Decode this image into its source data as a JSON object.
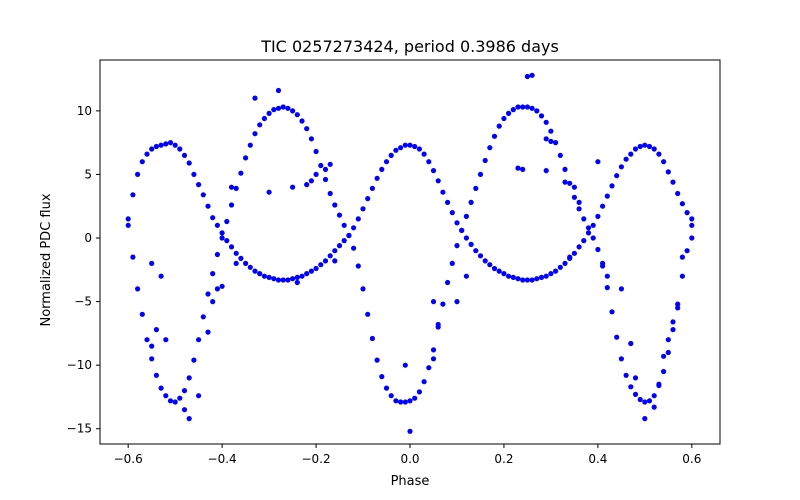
{
  "chart_data": {
    "type": "scatter",
    "title": "TIC 0257273424, period 0.3986 days",
    "xlabel": "Phase",
    "ylabel": "Normalized PDC flux",
    "xlim": [
      -0.66,
      0.66
    ],
    "ylim": [
      -16.2,
      14.0
    ],
    "xticks": [
      -0.6,
      -0.4,
      -0.2,
      0.0,
      0.2,
      0.4,
      0.6
    ],
    "xtick_labels": [
      "−0.6",
      "−0.4",
      "−0.2",
      "0.0",
      "0.2",
      "0.4",
      "0.6"
    ],
    "yticks": [
      -15,
      -10,
      -5,
      0,
      5,
      10
    ],
    "ytick_labels": [
      "−15",
      "−10",
      "−5",
      "0",
      "5",
      "10"
    ],
    "grid": false,
    "legend": "none",
    "marker_color": "#0000ff",
    "series": [
      {
        "points": [
          [
            -0.6,
            1.5
          ],
          [
            -0.59,
            3.4
          ],
          [
            -0.58,
            5.0
          ],
          [
            -0.57,
            6.0
          ],
          [
            -0.56,
            6.6
          ],
          [
            -0.55,
            7.0
          ],
          [
            -0.54,
            7.2
          ],
          [
            -0.53,
            7.3
          ],
          [
            -0.52,
            7.4
          ],
          [
            -0.51,
            7.5
          ],
          [
            -0.5,
            7.3
          ],
          [
            -0.49,
            7.0
          ],
          [
            -0.48,
            6.5
          ],
          [
            -0.47,
            5.9
          ],
          [
            -0.46,
            5.0
          ],
          [
            -0.45,
            4.2
          ],
          [
            -0.44,
            3.4
          ],
          [
            -0.43,
            2.5
          ],
          [
            -0.42,
            1.6
          ],
          [
            -0.41,
            1.0
          ],
          [
            -0.4,
            0.4
          ],
          [
            -0.39,
            -0.2
          ],
          [
            -0.38,
            -0.7
          ],
          [
            -0.37,
            -1.2
          ],
          [
            -0.36,
            -1.6
          ],
          [
            -0.35,
            -2.0
          ],
          [
            -0.34,
            -2.3
          ],
          [
            -0.33,
            -2.6
          ],
          [
            -0.32,
            -2.8
          ],
          [
            -0.31,
            -3.0
          ],
          [
            -0.3,
            -3.1
          ],
          [
            -0.29,
            -3.2
          ],
          [
            -0.28,
            -3.3
          ],
          [
            -0.27,
            -3.3
          ],
          [
            -0.26,
            -3.3
          ],
          [
            -0.25,
            -3.2
          ],
          [
            -0.24,
            -3.1
          ],
          [
            -0.23,
            -3.0
          ],
          [
            -0.22,
            -2.8
          ],
          [
            -0.21,
            -2.6
          ],
          [
            -0.2,
            -2.4
          ],
          [
            -0.19,
            -2.1
          ],
          [
            -0.18,
            -1.8
          ],
          [
            -0.17,
            -1.4
          ],
          [
            -0.16,
            -1.0
          ],
          [
            -0.15,
            -0.6
          ],
          [
            -0.14,
            -0.2
          ],
          [
            -0.13,
            0.2
          ],
          [
            -0.12,
            0.8
          ],
          [
            -0.11,
            1.5
          ],
          [
            -0.1,
            2.3
          ],
          [
            -0.09,
            3.1
          ],
          [
            -0.08,
            3.9
          ],
          [
            -0.07,
            4.7
          ],
          [
            -0.06,
            5.4
          ],
          [
            -0.05,
            6.0
          ],
          [
            -0.04,
            6.5
          ],
          [
            -0.03,
            6.9
          ],
          [
            -0.02,
            7.1
          ],
          [
            -0.01,
            7.3
          ],
          [
            0.0,
            7.3
          ],
          [
            0.01,
            7.2
          ],
          [
            0.02,
            7.0
          ],
          [
            0.03,
            6.6
          ],
          [
            0.04,
            6.0
          ],
          [
            0.05,
            5.3
          ],
          [
            0.06,
            4.5
          ],
          [
            0.07,
            3.6
          ],
          [
            0.08,
            2.8
          ],
          [
            0.09,
            2.0
          ],
          [
            0.1,
            1.2
          ],
          [
            0.11,
            0.6
          ],
          [
            0.12,
            0.0
          ],
          [
            0.13,
            -0.5
          ],
          [
            0.14,
            -1.0
          ],
          [
            0.15,
            -1.4
          ],
          [
            0.16,
            -1.8
          ],
          [
            0.17,
            -2.1
          ],
          [
            0.18,
            -2.4
          ],
          [
            0.19,
            -2.6
          ],
          [
            0.2,
            -2.8
          ],
          [
            0.21,
            -3.0
          ],
          [
            0.22,
            -3.1
          ],
          [
            0.23,
            -3.2
          ],
          [
            0.24,
            -3.3
          ],
          [
            0.25,
            -3.3
          ],
          [
            0.26,
            -3.3
          ],
          [
            0.27,
            -3.2
          ],
          [
            0.28,
            -3.1
          ],
          [
            0.29,
            -3.0
          ],
          [
            0.3,
            -2.8
          ],
          [
            0.31,
            -2.6
          ],
          [
            0.32,
            -2.3
          ],
          [
            0.33,
            -2.0
          ],
          [
            0.34,
            -1.6
          ],
          [
            0.35,
            -1.2
          ],
          [
            0.36,
            -0.7
          ],
          [
            0.37,
            -0.2
          ],
          [
            0.38,
            0.4
          ],
          [
            0.39,
            1.0
          ],
          [
            0.4,
            1.7
          ],
          [
            0.41,
            2.5
          ],
          [
            0.42,
            3.3
          ],
          [
            0.43,
            4.1
          ],
          [
            0.44,
            4.9
          ],
          [
            0.45,
            5.6
          ],
          [
            0.46,
            6.2
          ],
          [
            0.47,
            6.6
          ],
          [
            0.48,
            7.0
          ],
          [
            0.49,
            7.2
          ],
          [
            0.5,
            7.3
          ],
          [
            0.51,
            7.2
          ],
          [
            0.52,
            7.0
          ],
          [
            0.53,
            6.6
          ],
          [
            0.54,
            6.0
          ],
          [
            0.55,
            5.2
          ],
          [
            0.56,
            4.4
          ],
          [
            0.57,
            3.5
          ],
          [
            0.58,
            2.7
          ],
          [
            0.59,
            2.0
          ],
          [
            0.6,
            1.5
          ]
        ]
      },
      {
        "points": [
          [
            -0.6,
            1.0
          ],
          [
            -0.59,
            -1.5
          ],
          [
            -0.58,
            -4.0
          ],
          [
            -0.57,
            -6.0
          ],
          [
            -0.56,
            -8.0
          ],
          [
            -0.55,
            -9.5
          ],
          [
            -0.54,
            -10.8
          ],
          [
            -0.53,
            -11.8
          ],
          [
            -0.52,
            -12.4
          ],
          [
            -0.51,
            -12.8
          ],
          [
            -0.5,
            -12.9
          ],
          [
            -0.49,
            -12.6
          ],
          [
            -0.48,
            -12.0
          ],
          [
            -0.47,
            -11.0
          ],
          [
            -0.46,
            -9.6
          ],
          [
            -0.45,
            -8.0
          ],
          [
            -0.44,
            -6.2
          ],
          [
            -0.43,
            -4.4
          ],
          [
            -0.42,
            -2.8
          ],
          [
            -0.41,
            -1.3
          ],
          [
            -0.4,
            0.0
          ],
          [
            -0.39,
            1.3
          ],
          [
            -0.38,
            2.6
          ],
          [
            -0.37,
            3.9
          ],
          [
            -0.36,
            5.1
          ],
          [
            -0.35,
            6.3
          ],
          [
            -0.34,
            7.3
          ],
          [
            -0.33,
            8.2
          ],
          [
            -0.32,
            8.9
          ],
          [
            -0.31,
            9.4
          ],
          [
            -0.3,
            9.8
          ],
          [
            -0.29,
            10.1
          ],
          [
            -0.28,
            10.2
          ],
          [
            -0.27,
            10.3
          ],
          [
            -0.26,
            10.2
          ],
          [
            -0.25,
            10.0
          ],
          [
            -0.24,
            9.7
          ],
          [
            -0.23,
            9.2
          ],
          [
            -0.22,
            8.6
          ],
          [
            -0.21,
            7.8
          ],
          [
            -0.2,
            6.8
          ],
          [
            -0.19,
            5.7
          ],
          [
            -0.18,
            4.6
          ],
          [
            -0.17,
            3.5
          ],
          [
            -0.16,
            2.6
          ],
          [
            -0.15,
            1.8
          ],
          [
            -0.14,
            1.0
          ],
          [
            -0.13,
            0.2
          ],
          [
            -0.12,
            -0.8
          ],
          [
            -0.11,
            -2.2
          ],
          [
            -0.1,
            -4.0
          ],
          [
            -0.09,
            -6.0
          ],
          [
            -0.08,
            -7.9
          ],
          [
            -0.07,
            -9.6
          ],
          [
            -0.06,
            -10.9
          ],
          [
            -0.05,
            -11.8
          ],
          [
            -0.04,
            -12.4
          ],
          [
            -0.03,
            -12.8
          ],
          [
            -0.02,
            -12.9
          ],
          [
            -0.01,
            -12.9
          ],
          [
            0.0,
            -12.8
          ],
          [
            0.01,
            -12.6
          ],
          [
            0.02,
            -12.1
          ],
          [
            0.03,
            -11.3
          ],
          [
            0.04,
            -10.2
          ],
          [
            0.05,
            -8.8
          ],
          [
            0.06,
            -7.0
          ],
          [
            0.07,
            -5.2
          ],
          [
            0.08,
            -3.5
          ],
          [
            0.09,
            -2.0
          ],
          [
            0.1,
            -0.6
          ],
          [
            0.11,
            0.6
          ],
          [
            0.12,
            1.7
          ],
          [
            0.13,
            2.8
          ],
          [
            0.14,
            3.9
          ],
          [
            0.15,
            5.0
          ],
          [
            0.16,
            6.1
          ],
          [
            0.17,
            7.1
          ],
          [
            0.18,
            8.0
          ],
          [
            0.19,
            8.8
          ],
          [
            0.2,
            9.4
          ],
          [
            0.21,
            9.8
          ],
          [
            0.22,
            10.1
          ],
          [
            0.23,
            10.3
          ],
          [
            0.24,
            10.3
          ],
          [
            0.25,
            10.3
          ],
          [
            0.26,
            10.2
          ],
          [
            0.27,
            10.0
          ],
          [
            0.28,
            9.6
          ],
          [
            0.29,
            9.1
          ],
          [
            0.3,
            8.4
          ],
          [
            0.31,
            7.5
          ],
          [
            0.32,
            6.5
          ],
          [
            0.33,
            5.4
          ],
          [
            0.34,
            4.3
          ],
          [
            0.35,
            3.2
          ],
          [
            0.36,
            2.3
          ],
          [
            0.37,
            1.5
          ],
          [
            0.38,
            0.8
          ],
          [
            0.39,
            0.0
          ],
          [
            0.4,
            -0.9
          ],
          [
            0.41,
            -2.2
          ],
          [
            0.42,
            -3.9
          ],
          [
            0.43,
            -5.8
          ],
          [
            0.44,
            -7.8
          ],
          [
            0.45,
            -9.5
          ],
          [
            0.46,
            -10.8
          ],
          [
            0.47,
            -11.7
          ],
          [
            0.48,
            -12.3
          ],
          [
            0.49,
            -12.7
          ],
          [
            0.5,
            -12.9
          ],
          [
            0.51,
            -12.8
          ],
          [
            0.52,
            -12.4
          ],
          [
            0.53,
            -11.6
          ],
          [
            0.54,
            -10.5
          ],
          [
            0.55,
            -9.0
          ],
          [
            0.56,
            -7.2
          ],
          [
            0.57,
            -5.2
          ],
          [
            0.58,
            -3.0
          ],
          [
            0.59,
            -1.0
          ],
          [
            0.6,
            1.0
          ]
        ]
      },
      {
        "points": [
          [
            -0.28,
            11.6
          ],
          [
            -0.33,
            11.0
          ],
          [
            -0.2,
            5.0
          ],
          [
            -0.21,
            4.5
          ],
          [
            -0.22,
            4.2
          ],
          [
            -0.18,
            5.4
          ],
          [
            -0.17,
            5.8
          ],
          [
            -0.38,
            4.0
          ],
          [
            -0.24,
            -3.5
          ],
          [
            -0.16,
            -1.8
          ],
          [
            -0.55,
            -2.0
          ],
          [
            -0.53,
            -3.0
          ],
          [
            -0.54,
            -7.2
          ],
          [
            -0.55,
            -8.5
          ],
          [
            -0.52,
            -8.0
          ],
          [
            -0.48,
            -13.5
          ],
          [
            -0.47,
            -14.2
          ],
          [
            -0.45,
            -12.4
          ],
          [
            -0.43,
            -7.4
          ],
          [
            -0.42,
            -5.0
          ],
          [
            -0.41,
            -4.0
          ],
          [
            -0.4,
            -3.8
          ],
          [
            -0.37,
            -2.0
          ],
          [
            -0.3,
            3.6
          ],
          [
            -0.25,
            4.0
          ],
          [
            0.0,
            -15.2
          ],
          [
            -0.01,
            -10.0
          ],
          [
            0.05,
            -9.5
          ],
          [
            0.06,
            -6.8
          ],
          [
            0.05,
            -5.0
          ],
          [
            0.1,
            -5.0
          ],
          [
            0.12,
            -3.0
          ],
          [
            0.25,
            12.7
          ],
          [
            0.26,
            12.8
          ],
          [
            0.24,
            5.4
          ],
          [
            0.23,
            5.5
          ],
          [
            0.29,
            5.3
          ],
          [
            0.29,
            7.8
          ],
          [
            0.3,
            7.6
          ],
          [
            0.33,
            4.4
          ],
          [
            0.35,
            4.0
          ],
          [
            0.36,
            2.8
          ],
          [
            0.4,
            6.0
          ],
          [
            0.34,
            -1.5
          ],
          [
            0.41,
            -2.0
          ],
          [
            0.42,
            -3.0
          ],
          [
            0.45,
            -4.0
          ],
          [
            0.47,
            -8.3
          ],
          [
            0.48,
            -11.0
          ],
          [
            0.5,
            -14.2
          ],
          [
            0.52,
            -13.3
          ],
          [
            0.53,
            -11.5
          ],
          [
            0.54,
            -9.3
          ],
          [
            0.55,
            -8.0
          ],
          [
            0.56,
            -6.6
          ],
          [
            0.57,
            -5.5
          ],
          [
            0.58,
            -1.5
          ],
          [
            0.6,
            0.0
          ]
        ]
      }
    ]
  }
}
